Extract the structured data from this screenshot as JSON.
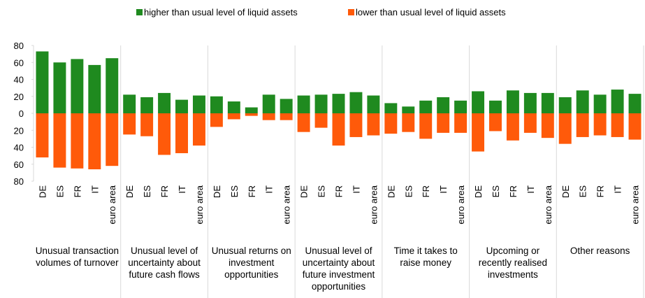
{
  "chart_data": {
    "type": "bar",
    "groups": [
      {
        "name": "Unusual transaction volumes of turnover",
        "categories": [
          "DE",
          "ES",
          "FR",
          "IT",
          "euro area"
        ]
      },
      {
        "name": "Unusual level of uncertainty about future cash flows",
        "categories": [
          "DE",
          "ES",
          "FR",
          "IT",
          "euro area"
        ]
      },
      {
        "name": "Unusual returns on investment opportunities",
        "categories": [
          "DE",
          "ES",
          "FR",
          "IT",
          "euro area"
        ]
      },
      {
        "name": "Unusual level of uncertainty about future investment opportunities",
        "categories": [
          "DE",
          "ES",
          "FR",
          "IT",
          "euro area"
        ]
      },
      {
        "name": "Time it takes to raise money",
        "categories": [
          "DE",
          "ES",
          "FR",
          "IT",
          "euro area"
        ]
      },
      {
        "name": "Upcoming or recently realised investments",
        "categories": [
          "DE",
          "ES",
          "FR",
          "IT",
          "euro area"
        ]
      },
      {
        "name": "Other reasons",
        "categories": [
          "DE",
          "ES",
          "FR",
          "IT",
          "euro area"
        ]
      }
    ],
    "series": [
      {
        "name": "higher than usual level of liquid assets",
        "color": "#1f8a1f",
        "values": [
          73,
          60,
          64,
          57,
          65,
          22,
          19,
          24,
          16,
          21,
          20,
          14,
          7,
          22,
          17,
          21,
          22,
          23,
          25,
          21,
          12,
          8,
          15,
          19,
          15,
          26,
          15,
          27,
          24,
          24,
          19,
          27,
          22,
          28,
          23
        ]
      },
      {
        "name": "lower than usual level of liquid assets",
        "color": "#ff5a0a",
        "values": [
          -52,
          -64,
          -65,
          -66,
          -62,
          -25,
          -27,
          -49,
          -47,
          -38,
          -16,
          -7,
          -3,
          -8,
          -8,
          -22,
          -17,
          -38,
          -28,
          -26,
          -24,
          -22,
          -30,
          -23,
          -23,
          -45,
          -21,
          -32,
          -23,
          -29,
          -36,
          -28,
          -26,
          -28,
          -31
        ]
      }
    ],
    "ylim": [
      -80,
      80
    ],
    "yticks": [
      80,
      60,
      40,
      20,
      0,
      {
        "value": -20,
        "label": "20"
      },
      {
        "value": -40,
        "label": "40"
      },
      {
        "value": -60,
        "label": "60"
      },
      {
        "value": -80,
        "label": "80"
      }
    ]
  }
}
